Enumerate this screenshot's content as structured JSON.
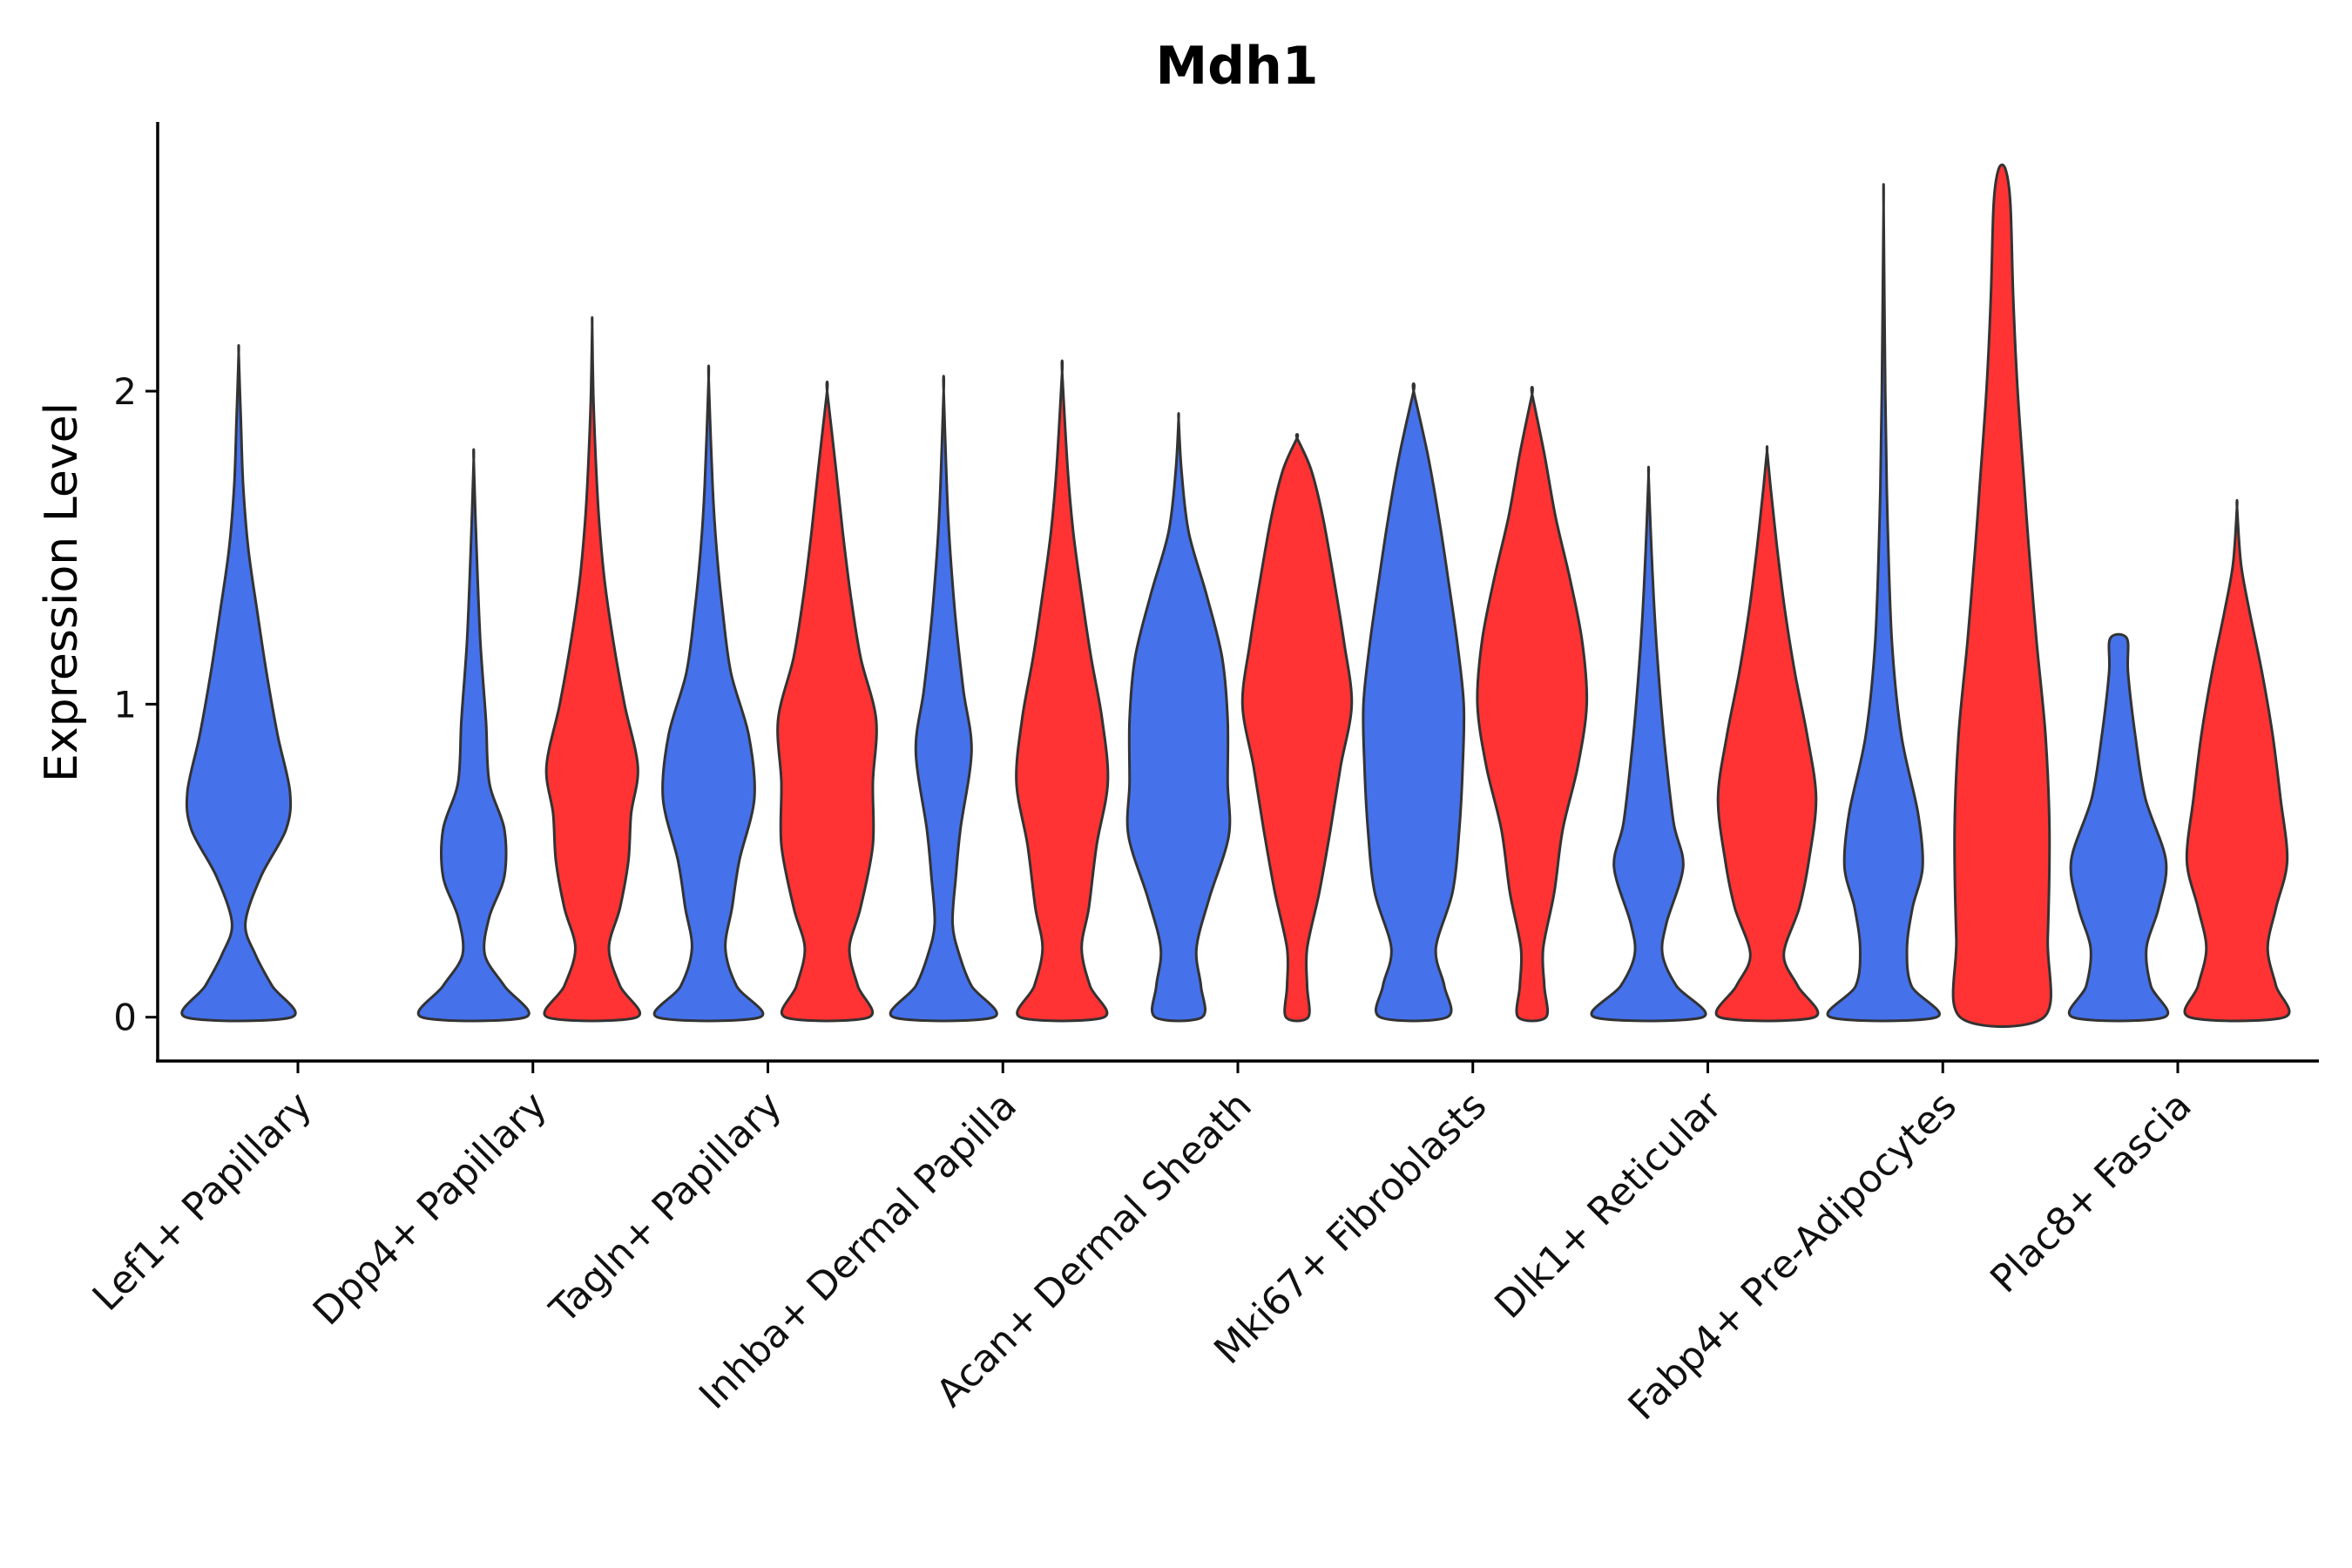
{
  "chart_data": {
    "type": "violin",
    "title": "Mdh1",
    "xlabel": "",
    "ylabel": "Expression Level",
    "ylim": [
      -0.14,
      2.86
    ],
    "yticks": [
      0,
      1,
      2
    ],
    "grid": false,
    "group_colors": [
      "#4571EB",
      "#FF3333"
    ],
    "categories": [
      "Lef1+ Papillary",
      "Dpp4+ Papillary",
      "Tagln+ Papillary",
      "Inhba+ Dermal Papilla",
      "Acan+ Dermal Sheath",
      "Mki67+ Fibroblasts",
      "Dlk1+ Reticular",
      "Fabp4+ Pre-Adipocytes",
      "Plac8+ Fascia"
    ],
    "violins": [
      {
        "category": 0,
        "group": 0,
        "max": 2.12,
        "profile": [
          [
            0,
            0.95
          ],
          [
            0.1,
            0.6
          ],
          [
            0.2,
            0.3
          ],
          [
            0.3,
            0.12
          ],
          [
            0.45,
            0.4
          ],
          [
            0.6,
            0.85
          ],
          [
            0.72,
            0.92
          ],
          [
            0.9,
            0.7
          ],
          [
            1.1,
            0.5
          ],
          [
            1.3,
            0.33
          ],
          [
            1.5,
            0.17
          ],
          [
            1.7,
            0.08
          ],
          [
            1.9,
            0.04
          ],
          [
            2.12,
            0.0
          ]
        ]
      },
      {
        "category": 1,
        "group": 0,
        "max": 1.78,
        "profile": [
          [
            0,
            0.93
          ],
          [
            0.1,
            0.55
          ],
          [
            0.2,
            0.2
          ],
          [
            0.32,
            0.28
          ],
          [
            0.45,
            0.55
          ],
          [
            0.6,
            0.55
          ],
          [
            0.75,
            0.28
          ],
          [
            0.95,
            0.22
          ],
          [
            1.2,
            0.12
          ],
          [
            1.5,
            0.05
          ],
          [
            1.78,
            0.0
          ]
        ]
      },
      {
        "category": 1,
        "group": 1,
        "max": 2.21,
        "profile": [
          [
            0,
            0.8
          ],
          [
            0.1,
            0.5
          ],
          [
            0.22,
            0.3
          ],
          [
            0.35,
            0.5
          ],
          [
            0.5,
            0.65
          ],
          [
            0.65,
            0.7
          ],
          [
            0.8,
            0.82
          ],
          [
            1.0,
            0.58
          ],
          [
            1.2,
            0.38
          ],
          [
            1.4,
            0.22
          ],
          [
            1.6,
            0.12
          ],
          [
            1.8,
            0.06
          ],
          [
            2.0,
            0.02
          ],
          [
            2.21,
            0.0
          ]
        ]
      },
      {
        "category": 2,
        "group": 0,
        "max": 2.04,
        "profile": [
          [
            0,
            0.92
          ],
          [
            0.1,
            0.5
          ],
          [
            0.22,
            0.3
          ],
          [
            0.35,
            0.42
          ],
          [
            0.5,
            0.55
          ],
          [
            0.7,
            0.82
          ],
          [
            0.9,
            0.72
          ],
          [
            1.1,
            0.4
          ],
          [
            1.3,
            0.25
          ],
          [
            1.5,
            0.14
          ],
          [
            1.7,
            0.07
          ],
          [
            2.04,
            0.0
          ]
        ]
      },
      {
        "category": 2,
        "group": 1,
        "max": 2.0,
        "profile": [
          [
            0,
            0.75
          ],
          [
            0.1,
            0.55
          ],
          [
            0.22,
            0.4
          ],
          [
            0.35,
            0.6
          ],
          [
            0.55,
            0.82
          ],
          [
            0.75,
            0.82
          ],
          [
            0.95,
            0.88
          ],
          [
            1.15,
            0.6
          ],
          [
            1.35,
            0.42
          ],
          [
            1.55,
            0.28
          ],
          [
            1.75,
            0.16
          ],
          [
            2.0,
            0.0
          ]
        ]
      },
      {
        "category": 3,
        "group": 0,
        "max": 2.0,
        "profile": [
          [
            0,
            0.9
          ],
          [
            0.1,
            0.5
          ],
          [
            0.2,
            0.28
          ],
          [
            0.3,
            0.16
          ],
          [
            0.45,
            0.22
          ],
          [
            0.6,
            0.3
          ],
          [
            0.85,
            0.5
          ],
          [
            1.05,
            0.35
          ],
          [
            1.3,
            0.2
          ],
          [
            1.6,
            0.08
          ],
          [
            2.0,
            0.0
          ]
        ]
      },
      {
        "category": 3,
        "group": 1,
        "max": 2.06,
        "profile": [
          [
            0,
            0.75
          ],
          [
            0.1,
            0.5
          ],
          [
            0.22,
            0.35
          ],
          [
            0.35,
            0.48
          ],
          [
            0.55,
            0.62
          ],
          [
            0.75,
            0.82
          ],
          [
            0.95,
            0.72
          ],
          [
            1.15,
            0.52
          ],
          [
            1.35,
            0.35
          ],
          [
            1.55,
            0.2
          ],
          [
            1.75,
            0.1
          ],
          [
            2.06,
            0.0
          ]
        ]
      },
      {
        "category": 4,
        "group": 0,
        "max": 1.91,
        "profile": [
          [
            0,
            0.42
          ],
          [
            0.1,
            0.4
          ],
          [
            0.22,
            0.32
          ],
          [
            0.38,
            0.55
          ],
          [
            0.58,
            0.9
          ],
          [
            0.75,
            0.88
          ],
          [
            0.95,
            0.88
          ],
          [
            1.15,
            0.78
          ],
          [
            1.35,
            0.5
          ],
          [
            1.55,
            0.18
          ],
          [
            1.75,
            0.05
          ],
          [
            1.91,
            0.0
          ]
        ]
      },
      {
        "category": 4,
        "group": 1,
        "max": 1.85,
        "profile": [
          [
            0,
            0.2
          ],
          [
            0.1,
            0.18
          ],
          [
            0.22,
            0.18
          ],
          [
            0.4,
            0.4
          ],
          [
            0.6,
            0.6
          ],
          [
            0.8,
            0.78
          ],
          [
            1.0,
            0.98
          ],
          [
            1.2,
            0.84
          ],
          [
            1.4,
            0.66
          ],
          [
            1.6,
            0.46
          ],
          [
            1.75,
            0.25
          ],
          [
            1.85,
            0.0
          ]
        ]
      },
      {
        "category": 5,
        "group": 0,
        "max": 2.0,
        "profile": [
          [
            0,
            0.6
          ],
          [
            0.1,
            0.55
          ],
          [
            0.22,
            0.4
          ],
          [
            0.4,
            0.7
          ],
          [
            0.6,
            0.82
          ],
          [
            0.8,
            0.88
          ],
          [
            1.0,
            0.9
          ],
          [
            1.2,
            0.78
          ],
          [
            1.4,
            0.62
          ],
          [
            1.6,
            0.45
          ],
          [
            1.8,
            0.25
          ],
          [
            2.0,
            0.0
          ]
        ]
      },
      {
        "category": 5,
        "group": 1,
        "max": 1.99,
        "profile": [
          [
            0,
            0.25
          ],
          [
            0.1,
            0.22
          ],
          [
            0.22,
            0.2
          ],
          [
            0.4,
            0.4
          ],
          [
            0.6,
            0.55
          ],
          [
            0.8,
            0.82
          ],
          [
            1.0,
            0.98
          ],
          [
            1.2,
            0.9
          ],
          [
            1.4,
            0.68
          ],
          [
            1.6,
            0.42
          ],
          [
            1.8,
            0.22
          ],
          [
            1.99,
            0.0
          ]
        ]
      },
      {
        "category": 6,
        "group": 0,
        "max": 1.73,
        "profile": [
          [
            0,
            0.97
          ],
          [
            0.1,
            0.5
          ],
          [
            0.2,
            0.25
          ],
          [
            0.3,
            0.32
          ],
          [
            0.48,
            0.62
          ],
          [
            0.62,
            0.45
          ],
          [
            0.85,
            0.3
          ],
          [
            1.05,
            0.2
          ],
          [
            1.25,
            0.12
          ],
          [
            1.5,
            0.05
          ],
          [
            1.73,
            0.0
          ]
        ]
      },
      {
        "category": 6,
        "group": 1,
        "max": 1.81,
        "profile": [
          [
            0,
            0.85
          ],
          [
            0.1,
            0.55
          ],
          [
            0.2,
            0.3
          ],
          [
            0.35,
            0.58
          ],
          [
            0.5,
            0.75
          ],
          [
            0.7,
            0.88
          ],
          [
            0.9,
            0.72
          ],
          [
            1.1,
            0.5
          ],
          [
            1.3,
            0.32
          ],
          [
            1.5,
            0.18
          ],
          [
            1.7,
            0.06
          ],
          [
            1.81,
            0.0
          ]
        ]
      },
      {
        "category": 7,
        "group": 0,
        "max": 2.59,
        "profile": [
          [
            0,
            0.95
          ],
          [
            0.1,
            0.5
          ],
          [
            0.22,
            0.42
          ],
          [
            0.35,
            0.52
          ],
          [
            0.48,
            0.7
          ],
          [
            0.65,
            0.62
          ],
          [
            0.9,
            0.32
          ],
          [
            1.2,
            0.15
          ],
          [
            1.6,
            0.07
          ],
          [
            2.0,
            0.03
          ],
          [
            2.59,
            0.0
          ]
        ]
      },
      {
        "category": 7,
        "group": 1,
        "max": 2.71,
        "profile": [
          [
            0,
            0.75
          ],
          [
            0.25,
            0.82
          ],
          [
            0.6,
            0.85
          ],
          [
            0.9,
            0.78
          ],
          [
            1.2,
            0.62
          ],
          [
            1.5,
            0.48
          ],
          [
            1.7,
            0.4
          ],
          [
            2.0,
            0.28
          ],
          [
            2.3,
            0.2
          ],
          [
            2.6,
            0.15
          ],
          [
            2.71,
            0.06
          ]
        ]
      },
      {
        "category": 8,
        "group": 0,
        "max": 1.21,
        "profile": [
          [
            0,
            0.82
          ],
          [
            0.1,
            0.58
          ],
          [
            0.22,
            0.5
          ],
          [
            0.35,
            0.72
          ],
          [
            0.5,
            0.85
          ],
          [
            0.7,
            0.48
          ],
          [
            0.9,
            0.3
          ],
          [
            1.1,
            0.17
          ],
          [
            1.21,
            0.15
          ]
        ]
      },
      {
        "category": 8,
        "group": 1,
        "max": 1.63,
        "profile": [
          [
            0,
            0.85
          ],
          [
            0.1,
            0.7
          ],
          [
            0.22,
            0.55
          ],
          [
            0.35,
            0.7
          ],
          [
            0.5,
            0.9
          ],
          [
            0.7,
            0.78
          ],
          [
            0.9,
            0.64
          ],
          [
            1.1,
            0.45
          ],
          [
            1.3,
            0.22
          ],
          [
            1.45,
            0.07
          ],
          [
            1.63,
            0.0
          ]
        ]
      }
    ]
  }
}
